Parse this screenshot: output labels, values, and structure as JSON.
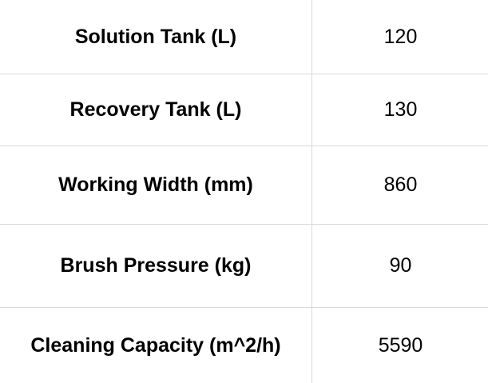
{
  "rows": [
    {
      "label": "Solution Tank (L)",
      "value": "120"
    },
    {
      "label": "Recovery Tank (L)",
      "value": "130"
    },
    {
      "label": "Working Width (mm)",
      "value": "860"
    },
    {
      "label": "Brush Pressure (kg)",
      "value": "90"
    },
    {
      "label": "Cleaning Capacity (m^2/h)",
      "value": "5590"
    }
  ]
}
